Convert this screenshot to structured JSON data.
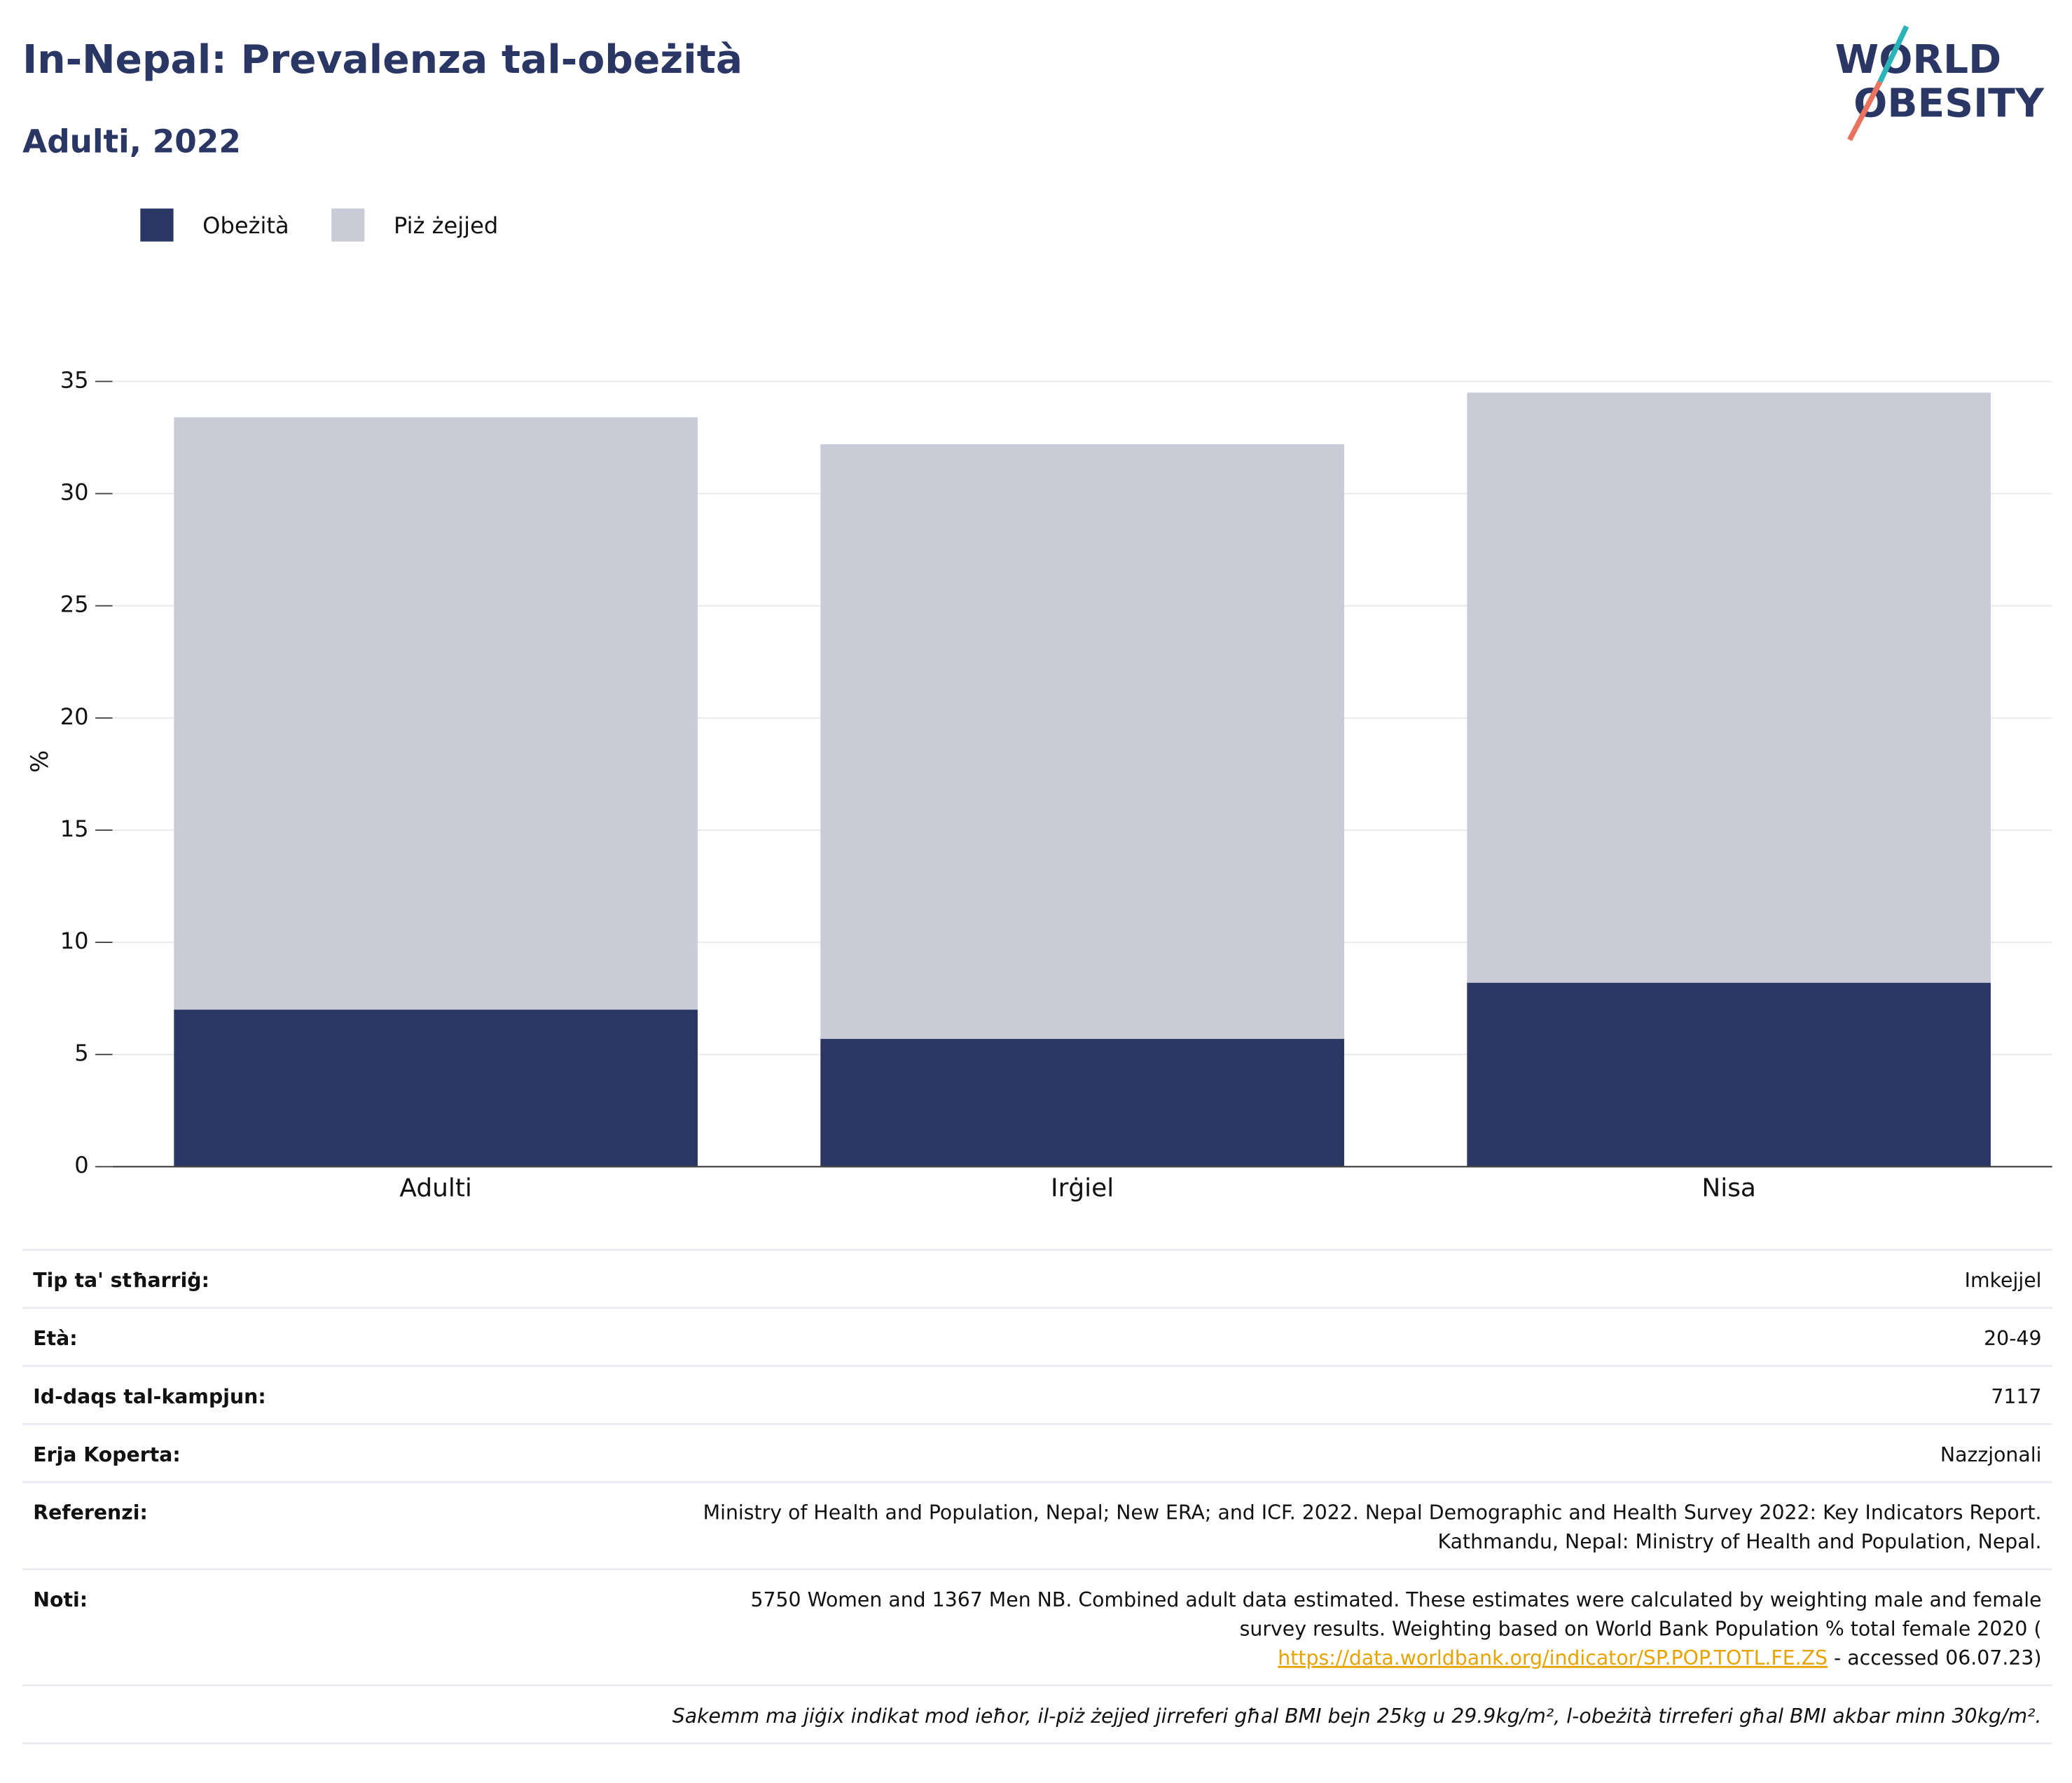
{
  "chart_data": {
    "type": "stacked_bar",
    "title": "In-Nepal: Prevalenza tal-obeżità",
    "subtitle": "Adulti, 2022",
    "categories": [
      "Adulti",
      "Irġiel",
      "Nisa"
    ],
    "series": [
      {
        "name": "Obeżità",
        "color": "#2a3764",
        "values": [
          7.0,
          5.7,
          8.2
        ]
      },
      {
        "name": "Piż żejjed",
        "color": "#c9cbd7",
        "values": [
          26.4,
          26.5,
          26.3
        ]
      }
    ],
    "ylabel": "%",
    "ylim": [
      0,
      35
    ],
    "yticks": [
      0,
      5,
      10,
      15,
      20,
      25,
      30,
      35
    ],
    "grid": true,
    "legend": "top-left"
  },
  "logo": {
    "line1": "WORLD",
    "line2": "OBESITY"
  },
  "details": {
    "rows": [
      {
        "label": "Tip ta' stħarriġ:",
        "value": [
          "Imkejjel"
        ]
      },
      {
        "label": "Età:",
        "value": [
          "20-49"
        ]
      },
      {
        "label": "Id-daqs tal-kampjun:",
        "value": [
          "7117"
        ]
      },
      {
        "label": "Erja Koperta:",
        "value": [
          "Nazzjonali"
        ]
      },
      {
        "label": "Referenzi:",
        "value": [
          "Ministry of Health and Population, Nepal; New ERA; and ICF. 2022. Nepal Demographic and Health Survey 2022: Key Indicators Report.",
          "Kathmandu, Nepal: Ministry of Health and Population, Nepal."
        ]
      }
    ],
    "notes": {
      "label": "Noti:",
      "lines": [
        "5750 Women and 1367 Men NB. Combined adult data estimated. These estimates were calculated by weighting male and female",
        "survey results. Weighting based on World Bank Population % total female 2020 ("
      ],
      "link": "https://data.worldbank.org/indicator/SP.POP.TOTL.FE.ZS",
      "after_link": " - accessed 06.07.23)"
    },
    "footnote": "Sakemm ma jiġix indikat mod ieħor, il-piż żejjed jirreferi għal BMI bejn 25kg u 29.9kg/m², l-obeżità tirreferi għal BMI akbar minn 30kg/m²."
  }
}
